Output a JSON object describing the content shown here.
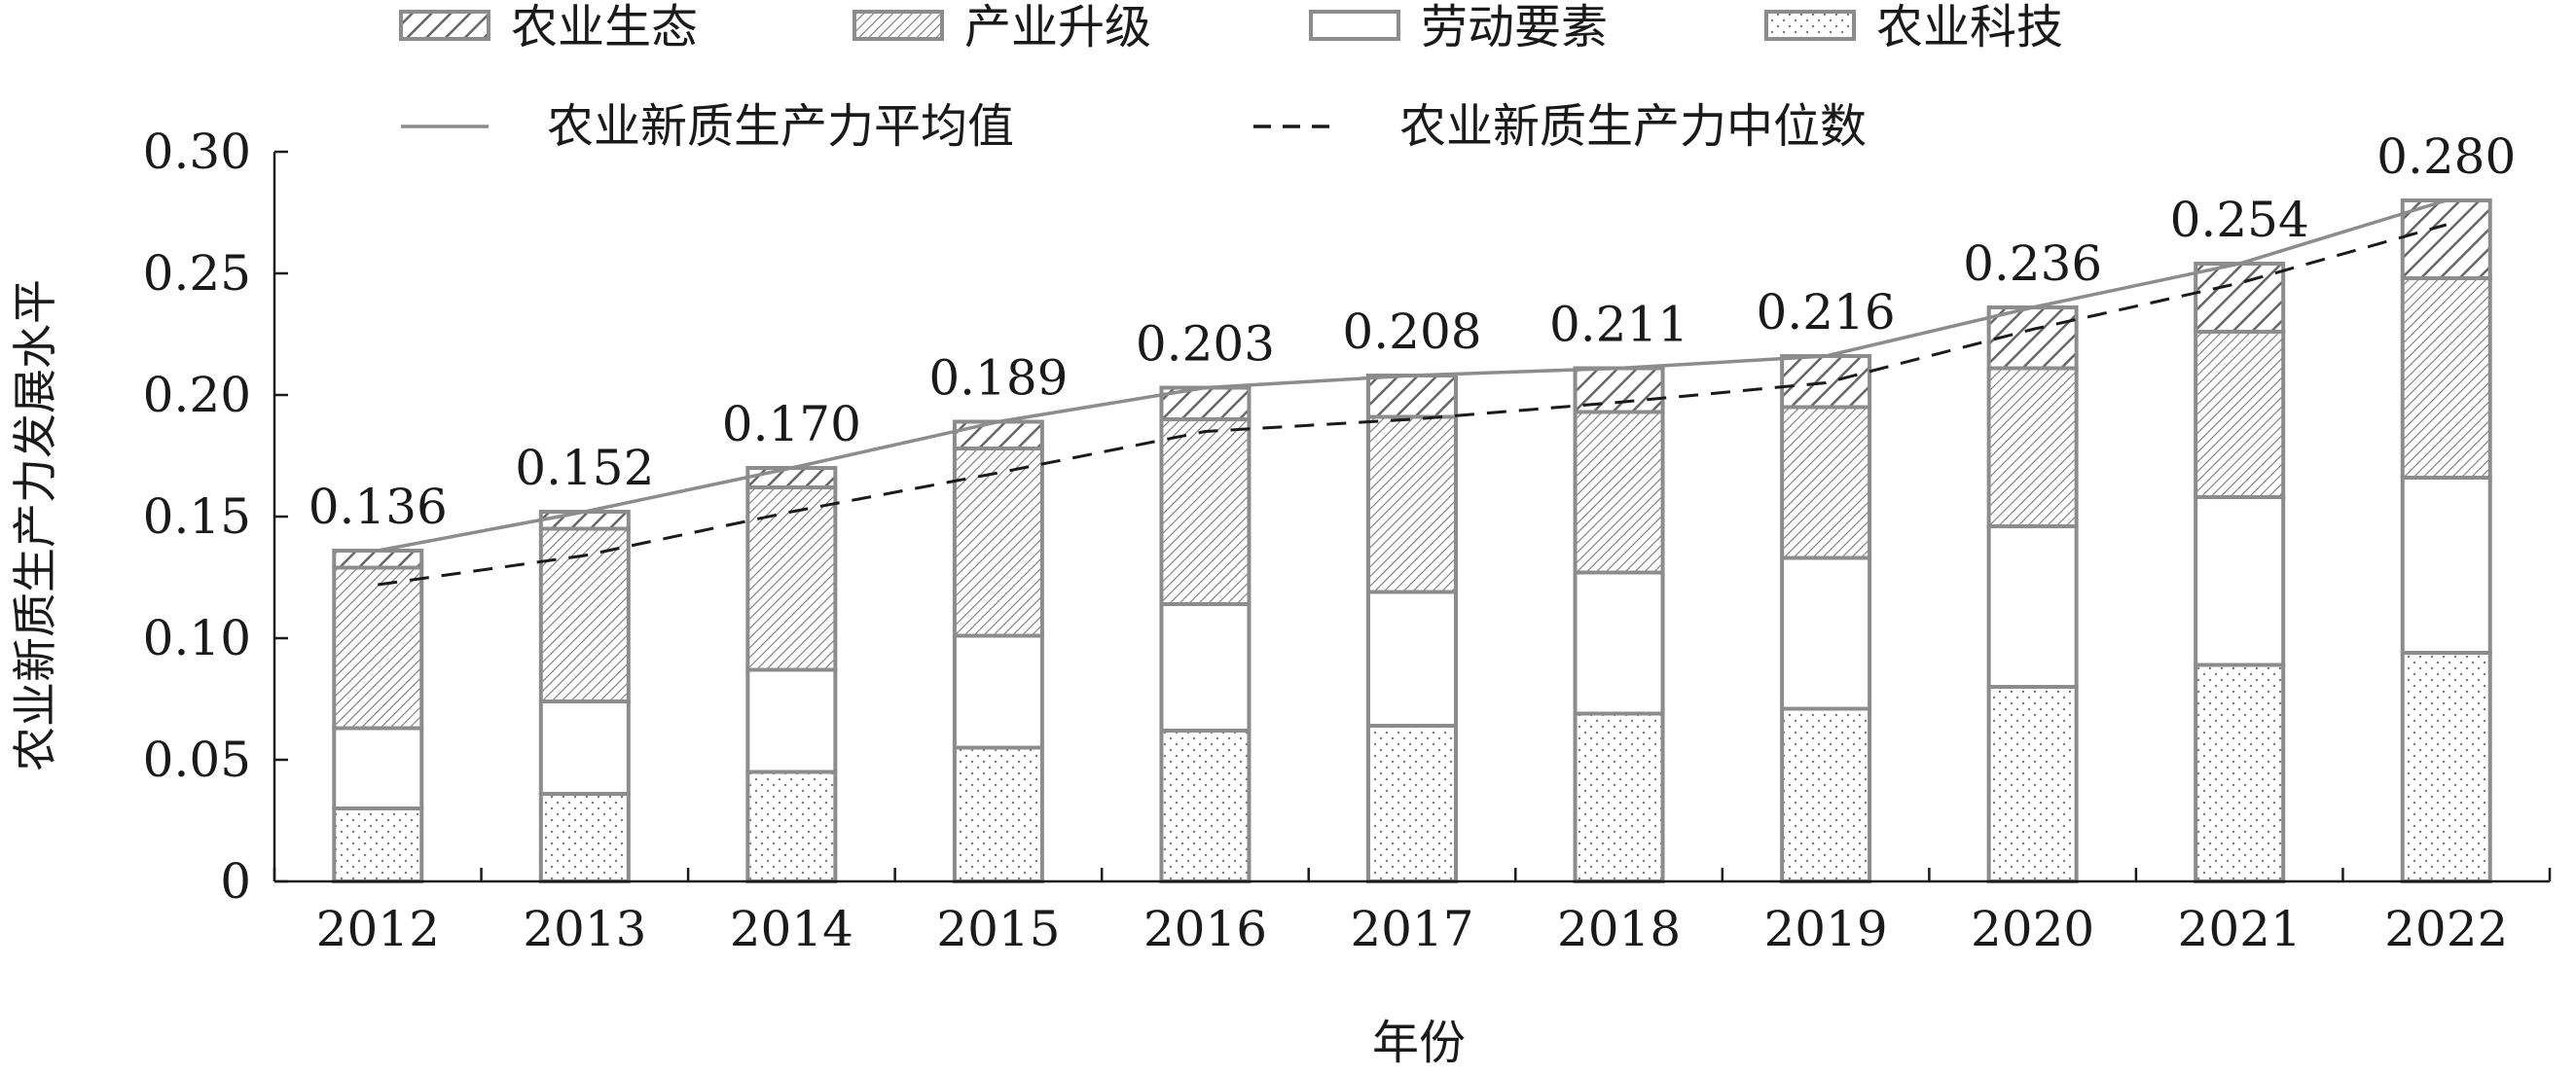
{
  "chart_data": {
    "type": "bar",
    "stacked": true,
    "xlabel": "年份",
    "ylabel": "农业新质生产力发展水平",
    "ylim": [
      0,
      0.3
    ],
    "yticks": [
      "0",
      "0.05",
      "0.10",
      "0.15",
      "0.20",
      "0.25",
      "0.30"
    ],
    "ytick_values": [
      0,
      0.05,
      0.1,
      0.15,
      0.2,
      0.25,
      0.3
    ],
    "categories": [
      "2012",
      "2013",
      "2014",
      "2015",
      "2016",
      "2017",
      "2018",
      "2019",
      "2020",
      "2021",
      "2022"
    ],
    "series": [
      {
        "name": "农业科技",
        "pattern": "dots",
        "values": [
          0.03,
          0.036,
          0.045,
          0.055,
          0.062,
          0.064,
          0.069,
          0.071,
          0.08,
          0.089,
          0.094
        ]
      },
      {
        "name": "劳动要素",
        "pattern": "plain",
        "values": [
          0.033,
          0.038,
          0.042,
          0.046,
          0.052,
          0.055,
          0.058,
          0.062,
          0.066,
          0.069,
          0.072
        ]
      },
      {
        "name": "产业升级",
        "pattern": "fine-hatch",
        "values": [
          0.066,
          0.071,
          0.075,
          0.077,
          0.076,
          0.072,
          0.066,
          0.062,
          0.065,
          0.068,
          0.082
        ]
      },
      {
        "name": "农业生态",
        "pattern": "wide-hatch",
        "values": [
          0.007,
          0.007,
          0.008,
          0.011,
          0.013,
          0.017,
          0.018,
          0.021,
          0.025,
          0.028,
          0.032
        ]
      }
    ],
    "totals": [
      0.136,
      0.152,
      0.17,
      0.189,
      0.203,
      0.208,
      0.211,
      0.216,
      0.236,
      0.254,
      0.28
    ],
    "total_labels": [
      "0.136",
      "0.152",
      "0.170",
      "0.189",
      "0.203",
      "0.208",
      "0.211",
      "0.216",
      "0.236",
      "0.254",
      "0.280"
    ],
    "lines": [
      {
        "name": "农业新质生产力平均值",
        "style": "solid",
        "values": [
          0.136,
          0.152,
          0.17,
          0.189,
          0.203,
          0.208,
          0.211,
          0.216,
          0.236,
          0.254,
          0.28
        ]
      },
      {
        "name": "农业新质生产力中位数",
        "style": "dashed",
        "values": [
          0.122,
          0.134,
          0.152,
          0.168,
          0.185,
          0.19,
          0.197,
          0.205,
          0.227,
          0.246,
          0.27
        ]
      }
    ],
    "legend": {
      "placement": "top",
      "row1": [
        "农业生态",
        "产业升级",
        "劳动要素",
        "农业科技"
      ],
      "row2": [
        "农业新质生产力平均值",
        "农业新质生产力中位数"
      ]
    },
    "grid": false,
    "colors": {
      "bar_edge": "#8c8c8c",
      "line": "#8c8c8c",
      "median": "#1a1a1a",
      "text": "#1a1a1a"
    }
  }
}
